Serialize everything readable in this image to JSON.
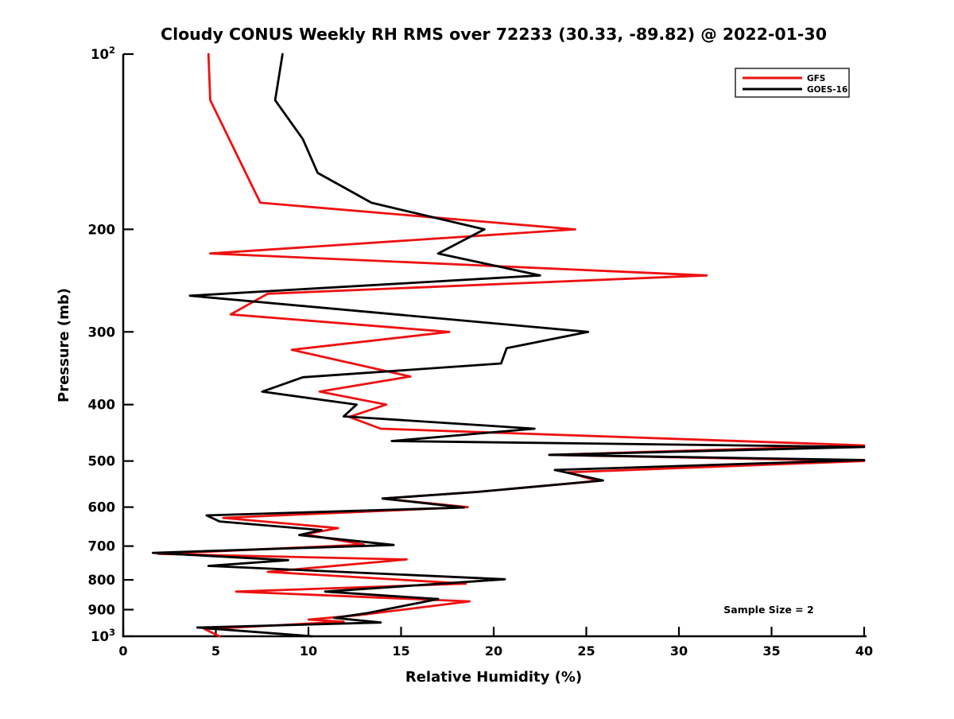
{
  "title": "Cloudy CONUS Weekly RH RMS over 72233 (30.33, -89.82) @ 2022-01-30",
  "annotation": "Sample Size = 2",
  "legend": {
    "entries": [
      {
        "label": "GFS",
        "color": "#ee1111"
      },
      {
        "label": "GOES-16",
        "color": "#000000"
      }
    ]
  },
  "chart_data": {
    "type": "line",
    "title": "Cloudy CONUS Weekly RH RMS over 72233 (30.33, -89.82) @ 2022-01-30",
    "xlabel": "Relative Humidity (%)",
    "ylabel": "Pressure (mb)",
    "xlim": [
      0,
      40
    ],
    "xticks": [
      0,
      5,
      10,
      15,
      20,
      25,
      30,
      35,
      40
    ],
    "yscale": "log",
    "y_inverted": true,
    "ylim": [
      100,
      1000
    ],
    "yticks": [
      {
        "v": 100,
        "label": "10",
        "exp": "2"
      },
      {
        "v": 200,
        "label": "200"
      },
      {
        "v": 300,
        "label": "300"
      },
      {
        "v": 400,
        "label": "400"
      },
      {
        "v": 500,
        "label": "500"
      },
      {
        "v": 600,
        "label": "600"
      },
      {
        "v": 700,
        "label": "700"
      },
      {
        "v": 800,
        "label": "800"
      },
      {
        "v": 900,
        "label": "900"
      },
      {
        "v": 1000,
        "label": "10",
        "exp": "3"
      }
    ],
    "grid": false,
    "legend_position": "upper right",
    "annotation": "Sample Size = 2",
    "series": [
      {
        "name": "GFS",
        "color": "#ee1111",
        "points_format": "[pressure_mb, rh_percent]",
        "points": [
          [
            100,
            4.6
          ],
          [
            120,
            4.7
          ],
          [
            180,
            7.4
          ],
          [
            200,
            24.4
          ],
          [
            220,
            4.7
          ],
          [
            240,
            31.5
          ],
          [
            258,
            7.8
          ],
          [
            280,
            5.8
          ],
          [
            300,
            17.6
          ],
          [
            322,
            9.1
          ],
          [
            358,
            15.5
          ],
          [
            380,
            10.6
          ],
          [
            400,
            14.2
          ],
          [
            420,
            12.2
          ],
          [
            440,
            13.9
          ],
          [
            470,
            40.0
          ],
          [
            488,
            23.0
          ],
          [
            500,
            40.0
          ],
          [
            523,
            24.0
          ],
          [
            541,
            25.6
          ],
          [
            565,
            19.1
          ],
          [
            580,
            14.0
          ],
          [
            600,
            18.6
          ],
          [
            626,
            5.4
          ],
          [
            652,
            11.6
          ],
          [
            668,
            9.8
          ],
          [
            696,
            13.0
          ],
          [
            722,
            1.9
          ],
          [
            738,
            15.3
          ],
          [
            775,
            7.8
          ],
          [
            812,
            18.5
          ],
          [
            838,
            6.1
          ],
          [
            871,
            18.7
          ],
          [
            920,
            12.7
          ],
          [
            936,
            10.0
          ],
          [
            944,
            11.9
          ],
          [
            972,
            4.4
          ],
          [
            1000,
            5.2
          ]
        ]
      },
      {
        "name": "GOES-16",
        "color": "#000000",
        "points_format": "[pressure_mb, rh_percent]",
        "points": [
          [
            100,
            8.6
          ],
          [
            120,
            8.2
          ],
          [
            140,
            9.7
          ],
          [
            160,
            10.5
          ],
          [
            180,
            13.4
          ],
          [
            200,
            19.5
          ],
          [
            220,
            17.0
          ],
          [
            240,
            22.5
          ],
          [
            260,
            3.6
          ],
          [
            300,
            25.1
          ],
          [
            320,
            20.7
          ],
          [
            340,
            20.4
          ],
          [
            359,
            9.7
          ],
          [
            380,
            7.5
          ],
          [
            400,
            12.6
          ],
          [
            419,
            11.9
          ],
          [
            440,
            22.2
          ],
          [
            462,
            14.5
          ],
          [
            473,
            40.0
          ],
          [
            488,
            23.0
          ],
          [
            498,
            40.0
          ],
          [
            518,
            23.3
          ],
          [
            540,
            25.9
          ],
          [
            565,
            19.1
          ],
          [
            580,
            14.0
          ],
          [
            601,
            18.4
          ],
          [
            620,
            4.5
          ],
          [
            635,
            5.2
          ],
          [
            657,
            10.7
          ],
          [
            670,
            9.5
          ],
          [
            697,
            14.6
          ],
          [
            719,
            1.6
          ],
          [
            740,
            8.9
          ],
          [
            757,
            4.6
          ],
          [
            798,
            20.6
          ],
          [
            838,
            10.9
          ],
          [
            863,
            17.0
          ],
          [
            912,
            13.2
          ],
          [
            930,
            11.4
          ],
          [
            947,
            13.9
          ],
          [
            966,
            4.0
          ],
          [
            1000,
            10.2
          ]
        ]
      }
    ]
  }
}
